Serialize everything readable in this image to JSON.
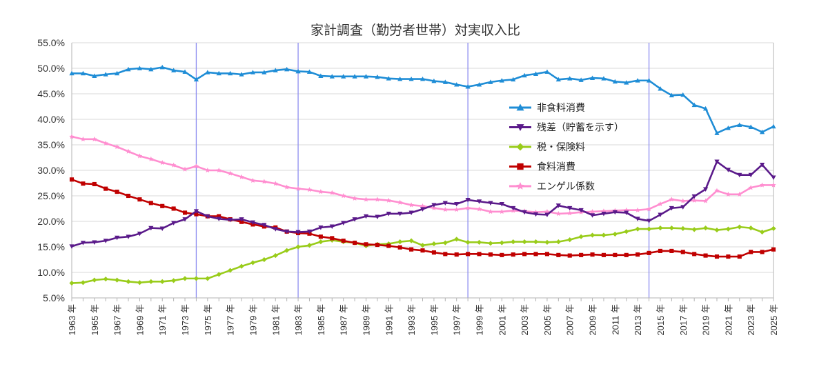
{
  "chart_data": {
    "type": "line",
    "title": "家計調査（勤労者世帯）対実収入比",
    "ylim": [
      5.0,
      55.0
    ],
    "ytick_values": [
      5,
      10,
      15,
      20,
      25,
      30,
      35,
      40,
      45,
      50,
      55
    ],
    "ytick_labels": [
      "5.0%",
      "10.0%",
      "15.0%",
      "20.0%",
      "25.0%",
      "30.0%",
      "35.0%",
      "40.0%",
      "45.0%",
      "50.0%",
      "55.0%"
    ],
    "x": [
      1963,
      1964,
      1965,
      1966,
      1967,
      1968,
      1969,
      1970,
      1971,
      1972,
      1973,
      1974,
      1975,
      1976,
      1977,
      1978,
      1979,
      1980,
      1981,
      1982,
      1983,
      1984,
      1985,
      1986,
      1987,
      1988,
      1989,
      1990,
      1991,
      1992,
      1993,
      1994,
      1995,
      1996,
      1997,
      1998,
      1999,
      2000,
      2001,
      2002,
      2003,
      2004,
      2005,
      2006,
      2007,
      2008,
      2009,
      2010,
      2011,
      2012,
      2013,
      2014,
      2015,
      2016,
      2017,
      2018,
      2019,
      2020,
      2021,
      2022,
      2023,
      2024,
      2025
    ],
    "xtick_labels": [
      "1963 年",
      "1965 年",
      "1967 年",
      "1969 年",
      "1971 年",
      "1973 年",
      "1975 年",
      "1977 年",
      "1979 年",
      "1981 年",
      "1983 年",
      "1985 年",
      "1987 年",
      "1989 年",
      "1991 年",
      "1993 年",
      "1995 年",
      "1997 年",
      "1999 年",
      "2001 年",
      "2003 年",
      "2005 年",
      "2007 年",
      "2009 年",
      "2011 年",
      "2013 年",
      "2015 年",
      "2017 年",
      "2019 年",
      "2021 年",
      "2023 年",
      "2025 年"
    ],
    "reference_lines_x": [
      1974,
      1983,
      1998,
      2014
    ],
    "legend_position": "right-center",
    "series": [
      {
        "name": "非食料消費",
        "color": "#1f8dd6",
        "marker": "triangle-up",
        "values": [
          49.0,
          49.0,
          48.5,
          48.8,
          49.0,
          49.8,
          50.0,
          49.8,
          50.2,
          49.6,
          49.3,
          47.8,
          49.2,
          49.0,
          49.0,
          48.8,
          49.2,
          49.2,
          49.6,
          49.8,
          49.4,
          49.3,
          48.5,
          48.4,
          48.4,
          48.4,
          48.4,
          48.3,
          48.0,
          47.9,
          47.9,
          47.9,
          47.5,
          47.3,
          46.8,
          46.4,
          46.8,
          47.3,
          47.6,
          47.8,
          48.6,
          48.9,
          49.3,
          47.8,
          48.0,
          47.7,
          48.1,
          48.0,
          47.4,
          47.2,
          47.6,
          47.6,
          46.0,
          44.7,
          44.8,
          42.8,
          42.1,
          37.3,
          38.3,
          38.9,
          38.5,
          37.5,
          38.6
        ]
      },
      {
        "name": "残差（貯蓄を示す）",
        "color": "#5a1a8a",
        "marker": "triangle-down",
        "values": [
          15.1,
          15.8,
          15.9,
          16.2,
          16.8,
          17.0,
          17.6,
          18.7,
          18.6,
          19.7,
          20.4,
          22.0,
          21.0,
          20.5,
          20.3,
          20.4,
          19.8,
          19.3,
          18.5,
          18.0,
          17.9,
          18.0,
          18.8,
          19.0,
          19.7,
          20.4,
          21.0,
          20.9,
          21.5,
          21.5,
          21.7,
          22.4,
          23.2,
          23.6,
          23.4,
          24.2,
          23.9,
          23.6,
          23.4,
          22.6,
          21.8,
          21.4,
          21.3,
          23.1,
          22.6,
          22.2,
          21.2,
          21.5,
          21.8,
          21.7,
          20.5,
          20.1,
          21.3,
          22.6,
          22.8,
          24.9,
          26.3,
          31.7,
          30.1,
          29.1,
          29.1,
          31.1,
          28.6
        ]
      },
      {
        "name": "税・保険料",
        "color": "#99cc1a",
        "marker": "diamond",
        "values": [
          7.9,
          8.0,
          8.5,
          8.7,
          8.5,
          8.2,
          8.0,
          8.2,
          8.2,
          8.4,
          8.8,
          8.8,
          8.8,
          9.6,
          10.4,
          11.2,
          11.9,
          12.5,
          13.3,
          14.3,
          15.0,
          15.3,
          16.0,
          16.3,
          16.0,
          15.8,
          15.2,
          15.5,
          15.6,
          16.0,
          16.2,
          15.3,
          15.6,
          15.8,
          16.5,
          15.9,
          15.9,
          15.7,
          15.8,
          16.0,
          16.0,
          16.0,
          15.9,
          16.0,
          16.4,
          17.0,
          17.3,
          17.3,
          17.5,
          18.0,
          18.5,
          18.5,
          18.7,
          18.7,
          18.6,
          18.4,
          18.7,
          18.3,
          18.5,
          18.9,
          18.7,
          17.9,
          18.6
        ]
      },
      {
        "name": "食料消費",
        "color": "#c00000",
        "marker": "square",
        "values": [
          28.2,
          27.4,
          27.3,
          26.4,
          25.8,
          25.0,
          24.3,
          23.6,
          23.0,
          22.5,
          21.7,
          21.4,
          21.0,
          21.0,
          20.4,
          19.9,
          19.4,
          19.0,
          18.8,
          18.0,
          17.7,
          17.6,
          17.0,
          16.7,
          16.2,
          15.8,
          15.5,
          15.4,
          15.2,
          14.9,
          14.5,
          14.3,
          13.9,
          13.6,
          13.5,
          13.6,
          13.6,
          13.5,
          13.4,
          13.5,
          13.6,
          13.6,
          13.6,
          13.4,
          13.3,
          13.4,
          13.5,
          13.4,
          13.4,
          13.4,
          13.5,
          13.8,
          14.2,
          14.2,
          14.0,
          13.6,
          13.3,
          13.1,
          13.1,
          13.1,
          14.0,
          14.0,
          14.5
        ]
      },
      {
        "name": "エンゲル係数",
        "color": "#ff8ed0",
        "marker": "star",
        "values": [
          36.6,
          36.1,
          36.1,
          35.3,
          34.6,
          33.7,
          32.8,
          32.2,
          31.5,
          31.0,
          30.2,
          30.8,
          30.0,
          30.0,
          29.4,
          28.7,
          28.0,
          27.8,
          27.4,
          26.7,
          26.4,
          26.2,
          25.8,
          25.6,
          25.0,
          24.5,
          24.3,
          24.3,
          24.1,
          23.7,
          23.2,
          23.0,
          22.6,
          22.3,
          22.3,
          22.6,
          22.4,
          21.9,
          21.9,
          22.1,
          22.0,
          21.8,
          21.9,
          21.5,
          21.6,
          21.8,
          21.9,
          22.0,
          22.1,
          22.2,
          22.2,
          22.4,
          23.4,
          24.3,
          24.0,
          24.1,
          24.0,
          26.0,
          25.3,
          25.3,
          26.6,
          27.1,
          27.1
        ]
      }
    ]
  }
}
